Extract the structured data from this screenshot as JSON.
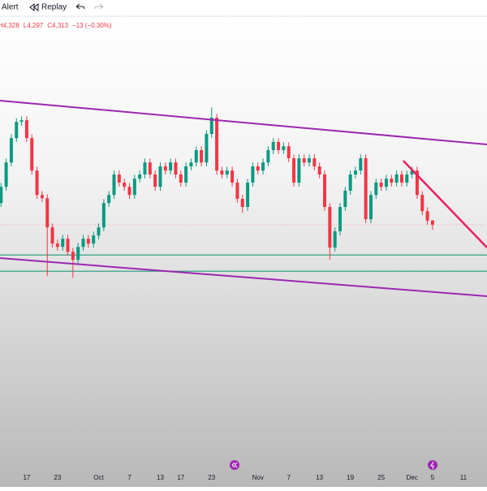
{
  "toolbar": {
    "items": [
      "Alert",
      "Replay"
    ]
  },
  "chart_data": {
    "type": "candlestick",
    "legend_values": [
      "H4,328",
      "L4,297",
      "C4,313",
      "−13 (−0.30%)"
    ],
    "x": [
      -5,
      -4,
      -3,
      -2,
      -1,
      0,
      1,
      2,
      3,
      4,
      5,
      6,
      7,
      8,
      9,
      10,
      11,
      12,
      13,
      14,
      15,
      16,
      17,
      18,
      19,
      20,
      21,
      22,
      23,
      24,
      25,
      26,
      27,
      28,
      29,
      30,
      31,
      32,
      33,
      34,
      35,
      36,
      37,
      38,
      39,
      40,
      41,
      42,
      43,
      44,
      45,
      46,
      47,
      48,
      49,
      50,
      51,
      52,
      53,
      54,
      55,
      56,
      57,
      58,
      59,
      60,
      61,
      62,
      63,
      64,
      65,
      66,
      67,
      68,
      69,
      70,
      71,
      72,
      73,
      74,
      75,
      76,
      77,
      78,
      79
    ],
    "open": [
      4380,
      4430,
      4505,
      4580,
      4630,
      4635,
      4580,
      4480,
      4405,
      4395,
      4305,
      4255,
      4245,
      4270,
      4230,
      4205,
      4245,
      4270,
      4255,
      4280,
      4305,
      4380,
      4405,
      4468,
      4443,
      4430,
      4405,
      4455,
      4468,
      4505,
      4468,
      4430,
      4493,
      4480,
      4505,
      4468,
      4443,
      4493,
      4505,
      4543,
      4505,
      4593,
      4643,
      4480,
      4468,
      4480,
      4443,
      4393,
      4368,
      4443,
      4493,
      4480,
      4505,
      4543,
      4568,
      4543,
      4555,
      4518,
      4443,
      4518,
      4505,
      4518,
      4493,
      4468,
      4368,
      4243,
      4293,
      4368,
      4418,
      4468,
      4480,
      4518,
      4330,
      4405,
      4443,
      4430,
      4455,
      4443,
      4468,
      4443,
      4468,
      4480,
      4405,
      4355,
      4326
    ],
    "high": [
      4442,
      4517,
      4592,
      4642,
      4647,
      4647,
      4592,
      4492,
      4417,
      4407,
      4317,
      4267,
      4282,
      4282,
      4242,
      4257,
      4282,
      4282,
      4292,
      4317,
      4392,
      4417,
      4480,
      4480,
      4455,
      4442,
      4467,
      4480,
      4517,
      4517,
      4480,
      4505,
      4505,
      4517,
      4517,
      4480,
      4505,
      4517,
      4555,
      4555,
      4605,
      4675,
      4655,
      4492,
      4492,
      4492,
      4455,
      4405,
      4455,
      4505,
      4505,
      4517,
      4555,
      4580,
      4580,
      4567,
      4567,
      4530,
      4530,
      4530,
      4530,
      4530,
      4505,
      4480,
      4380,
      4305,
      4380,
      4430,
      4480,
      4492,
      4530,
      4530,
      4417,
      4455,
      4455,
      4467,
      4467,
      4480,
      4480,
      4480,
      4492,
      4492,
      4417,
      4367,
      4328
    ],
    "low": [
      4368,
      4418,
      4493,
      4568,
      4618,
      4568,
      4468,
      4393,
      4383,
      4155,
      4243,
      4233,
      4233,
      4218,
      4150,
      4193,
      4233,
      4243,
      4243,
      4268,
      4293,
      4368,
      4393,
      4431,
      4418,
      4393,
      4393,
      4443,
      4456,
      4456,
      4418,
      4418,
      4468,
      4468,
      4456,
      4431,
      4431,
      4481,
      4493,
      4493,
      4493,
      4581,
      4468,
      4456,
      4456,
      4431,
      4381,
      4350,
      4356,
      4431,
      4468,
      4468,
      4493,
      4531,
      4531,
      4531,
      4506,
      4431,
      4431,
      4493,
      4493,
      4481,
      4456,
      4356,
      4205,
      4231,
      4281,
      4356,
      4406,
      4456,
      4468,
      4318,
      4318,
      4393,
      4418,
      4418,
      4431,
      4431,
      4431,
      4431,
      4456,
      4393,
      4343,
      4314,
      4297
    ],
    "close": [
      4430,
      4505,
      4580,
      4630,
      4635,
      4580,
      4480,
      4405,
      4395,
      4305,
      4255,
      4245,
      4270,
      4230,
      4205,
      4245,
      4270,
      4255,
      4280,
      4305,
      4380,
      4405,
      4468,
      4443,
      4430,
      4405,
      4455,
      4468,
      4505,
      4468,
      4430,
      4493,
      4480,
      4505,
      4468,
      4443,
      4493,
      4505,
      4543,
      4505,
      4593,
      4643,
      4480,
      4468,
      4480,
      4443,
      4393,
      4368,
      4443,
      4493,
      4480,
      4505,
      4543,
      4568,
      4543,
      4555,
      4518,
      4443,
      4518,
      4505,
      4518,
      4493,
      4468,
      4368,
      4243,
      4293,
      4368,
      4418,
      4468,
      4480,
      4518,
      4330,
      4405,
      4443,
      4430,
      4455,
      4443,
      4468,
      4443,
      4468,
      4480,
      4405,
      4355,
      4326,
      4313
    ],
    "up_color": "#089981",
    "down_color": "#f23645",
    "xlim": [
      -5.2,
      89.6
    ],
    "ylim": [
      3505.5,
      5005.5
    ],
    "xticks": [
      {
        "value": 0,
        "label": "17"
      },
      {
        "value": 6,
        "label": "23"
      },
      {
        "value": 14,
        "label": "Oct"
      },
      {
        "value": 20,
        "label": "7"
      },
      {
        "value": 26,
        "label": "13"
      },
      {
        "value": 30,
        "label": "17"
      },
      {
        "value": 36,
        "label": "23"
      },
      {
        "value": 45,
        "label": "Nov"
      },
      {
        "value": 51,
        "label": "7"
      },
      {
        "value": 57,
        "label": "13"
      },
      {
        "value": 63,
        "label": "19"
      },
      {
        "value": 69,
        "label": "25"
      },
      {
        "value": 75,
        "label": "Dec"
      },
      {
        "value": 79,
        "label": "5"
      },
      {
        "value": 85,
        "label": "11"
      }
    ],
    "horizontal_lines": [
      {
        "value": 4220,
        "color": "#22997a"
      },
      {
        "value": 4170,
        "color": "#22997a"
      }
    ],
    "trend_lines": [
      {
        "color": "#9c27b0",
        "x": [
          -5.2,
          89.6
        ],
        "y": [
          4695.5,
          4560.5
        ]
      },
      {
        "color": "#9c27b0",
        "x": [
          -5.2,
          89.6
        ],
        "y": [
          4210.5,
          4093
        ]
      },
      {
        "color": "#e91e63",
        "x": [
          73.3,
          89.6
        ],
        "y": [
          4510.5,
          4243
        ]
      }
    ]
  }
}
